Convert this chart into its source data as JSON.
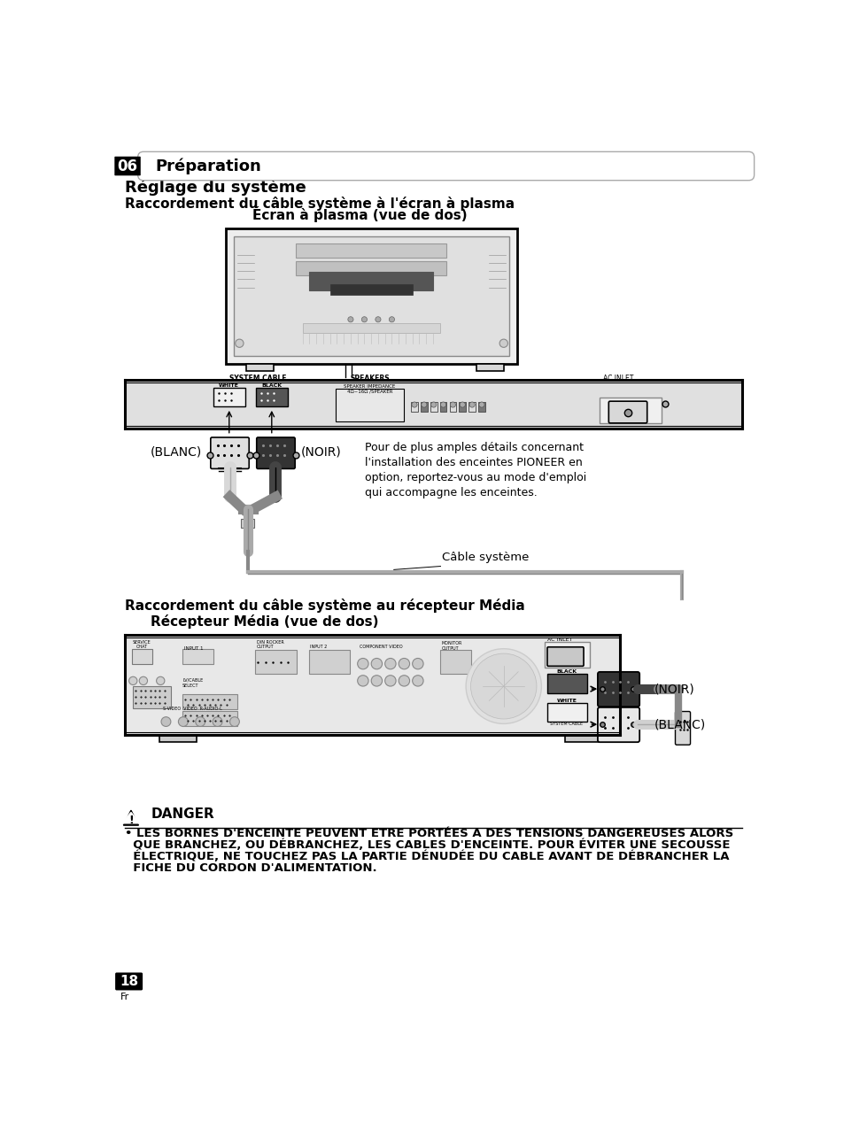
{
  "bg_color": "#ffffff",
  "header_tab_text": "06",
  "header_title": "Préparation",
  "section_title": "Réglage du système",
  "subsection1": "Raccordement du câble système à l'écran à plasma",
  "diagram1_title": "Écran à plasma (vue de dos)",
  "blanc_label": "(BLANC)",
  "noir_label1": "(NOIR)",
  "note_text": "Pour de plus amples détails concernant\nl'installation des enceintes PIONEER en\noption, reportez-vous au mode d'emploi\nqui accompagne les enceintes.",
  "cable_label": "Câble système",
  "subsection2": "Raccordement du câble système au récepteur Média",
  "diagram2_title": "Récepteur Média (vue de dos)",
  "noir_label2": "(NOIR)",
  "blanc_label2": "(BLANC)",
  "danger_title": "DANGER",
  "danger_lines": [
    "• LES BORNES D'ENCEINTE PEUVENT ETRE PORTÉES A DES TENSIONS DANGEREUSES ALORS",
    "  QUE BRANCHEZ, OU DÉBRANCHEZ, LES CABLES D'ENCEINTE. POUR ÉVITER UNE SECOUSSE",
    "  ÉLECTRIQUE, NE TOUCHEZ PAS LA PARTIE DÉNUDÉE DU CABLE AVANT DE DÉBRANCHER LA",
    "  FICHE DU CORDON D'ALIMENTATION."
  ],
  "page_number": "18",
  "fr_label": "Fr"
}
